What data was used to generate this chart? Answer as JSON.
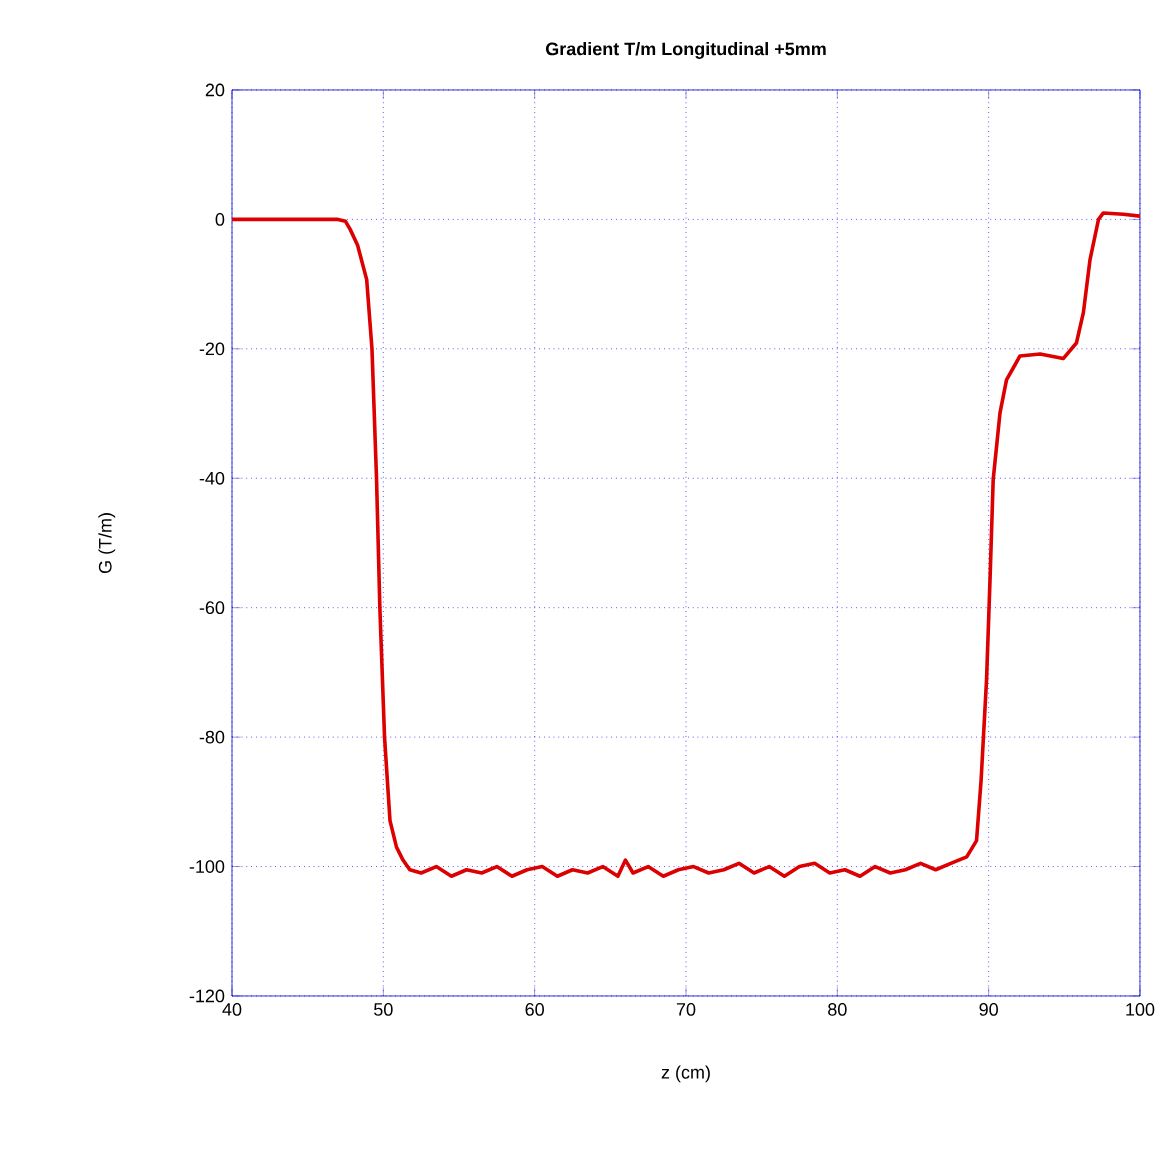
{
  "chart_data": {
    "type": "line",
    "title": "Gradient T/m Longitudinal +5mm",
    "xlabel": "z (cm)",
    "ylabel": "G (T/m)",
    "x": [
      40,
      44,
      47,
      47.5,
      47.8,
      48.3,
      48.9,
      49.25,
      49.55,
      49.77,
      50.08,
      50.44,
      50.87,
      51.3,
      51.75,
      52.5,
      53.5,
      54.5,
      55.5,
      56.5,
      57.5,
      58.5,
      59.5,
      60.5,
      61.5,
      62.5,
      63.5,
      64.5,
      65.5,
      66,
      66.5,
      67.5,
      68.5,
      69.5,
      70.5,
      71.5,
      72.5,
      73.5,
      74.5,
      75.5,
      76.5,
      77.5,
      78.5,
      79.5,
      80.5,
      81.5,
      82.5,
      83.5,
      84.5,
      85.5,
      86.5,
      87.5,
      88.55,
      89.2,
      89.5,
      89.86,
      90.09,
      90.3,
      90.75,
      91.18,
      92.07,
      93.4,
      94.93,
      95.8,
      96.26,
      96.7,
      97.26,
      97.58,
      98.9,
      100
    ],
    "values": [
      0,
      0,
      0,
      -0.3,
      -1.5,
      -4,
      -9.3,
      -20,
      -40,
      -60,
      -80,
      -92.9,
      -97,
      -99,
      -100.5,
      -101,
      -100,
      -101.5,
      -100.5,
      -101,
      -100,
      -101.5,
      -100.5,
      -100,
      -101.5,
      -100.5,
      -101,
      -100,
      -101.5,
      -99,
      -101,
      -100,
      -101.5,
      -100.5,
      -100,
      -101,
      -100.5,
      -99.5,
      -101,
      -100,
      -101.5,
      -100,
      -99.5,
      -101,
      -100.5,
      -101.5,
      -100,
      -101,
      -100.5,
      -99.5,
      -100.5,
      -99.5,
      -98.5,
      -96,
      -86.7,
      -71.2,
      -55.7,
      -40.2,
      -29.9,
      -24.8,
      -21.1,
      -20.8,
      -21.5,
      -19.1,
      -14.4,
      -6.2,
      0,
      1,
      0.8,
      0.5
    ],
    "color": "#dd0000",
    "xlim": [
      40,
      100
    ],
    "ylim": [
      -120,
      20
    ],
    "xticks": [
      40,
      50,
      60,
      70,
      80,
      90,
      100
    ],
    "yticks": [
      -120,
      -100,
      -80,
      -60,
      -40,
      -20,
      0,
      20
    ],
    "grid": true,
    "line_style": "solid",
    "marker": "none"
  }
}
